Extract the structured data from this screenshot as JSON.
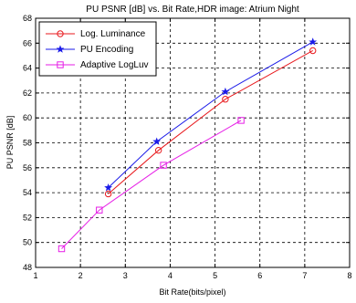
{
  "chart_data": {
    "type": "line",
    "title": "PU PSNR [dB] vs. Bit Rate,HDR image: Atrium Night",
    "xlabel": "Bit Rate(bits/pixel)",
    "ylabel": "PU PSNR [dB]",
    "xlim": [
      1,
      8
    ],
    "ylim": [
      48,
      68
    ],
    "xticks": [
      "1",
      "2",
      "3",
      "4",
      "5",
      "6",
      "7",
      "8"
    ],
    "yticks": [
      "48",
      "50",
      "52",
      "54",
      "56",
      "58",
      "60",
      "62",
      "64",
      "66",
      "68"
    ],
    "grid": true,
    "legend_position": "top-left",
    "series": [
      {
        "name": "Log. Luminance",
        "color": "#e8191d",
        "marker": "circle",
        "x": [
          2.62,
          3.74,
          5.23,
          7.18
        ],
        "y": [
          53.9,
          57.4,
          61.5,
          65.4
        ]
      },
      {
        "name": "PU Encoding",
        "color": "#1a1ae8",
        "marker": "star",
        "x": [
          2.62,
          3.7,
          5.23,
          7.18
        ],
        "y": [
          54.4,
          58.1,
          62.1,
          66.1
        ]
      },
      {
        "name": "Adaptive LogLuv",
        "color": "#e61ee6",
        "marker": "square",
        "x": [
          1.58,
          2.42,
          3.85,
          5.58
        ],
        "y": [
          49.5,
          52.6,
          56.2,
          59.8
        ]
      }
    ]
  }
}
